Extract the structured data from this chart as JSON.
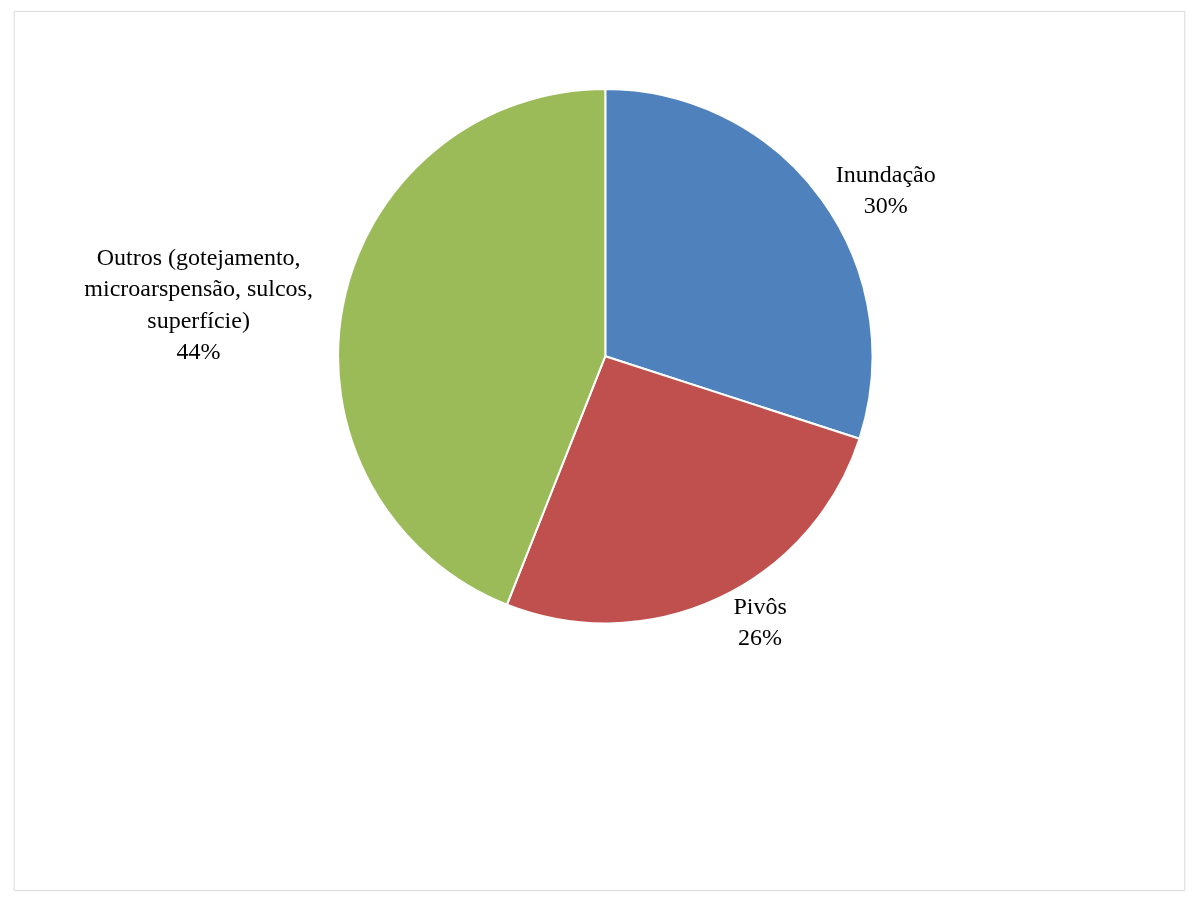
{
  "chart_data": {
    "type": "pie",
    "categories": [
      "Inundação",
      "Pivôs",
      "Outros (gotejamento, microarspensão, sulcos, superfície)"
    ],
    "values": [
      30,
      26,
      44
    ],
    "value_labels": [
      "30%",
      "26%",
      "44%"
    ],
    "colors": [
      "#4f81bd",
      "#c0504d",
      "#9bbb59"
    ],
    "legend": false
  }
}
